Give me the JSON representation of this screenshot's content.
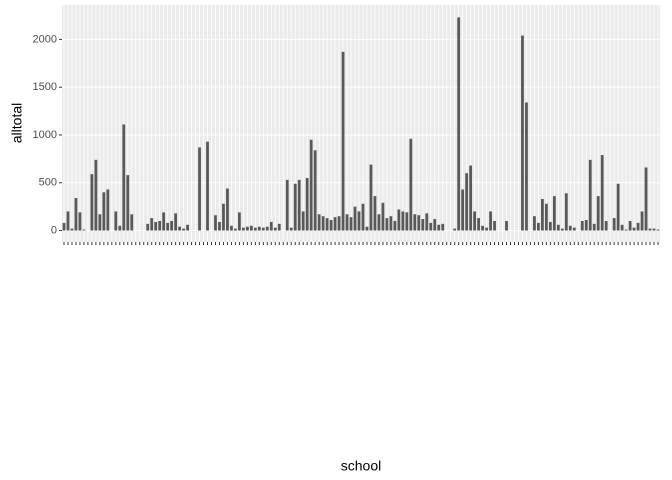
{
  "chart_data": {
    "type": "bar",
    "x_label": "school",
    "y_label": "alltotal",
    "categories": [
      null,
      null,
      null,
      null,
      null,
      null,
      null,
      null,
      null,
      null,
      null,
      null,
      null,
      null,
      null,
      null,
      null,
      null,
      null,
      null,
      null,
      null,
      null,
      null,
      null,
      null,
      null,
      null,
      null,
      null,
      null,
      null,
      null,
      null,
      null,
      null,
      null,
      null,
      null,
      null,
      null,
      null,
      null,
      null,
      null,
      null,
      null,
      null,
      null,
      null,
      null,
      null,
      null,
      null,
      null,
      null,
      null,
      null,
      null,
      null,
      null,
      null,
      null,
      null,
      null,
      null,
      null,
      null,
      null,
      null,
      null,
      null,
      null,
      null,
      null,
      null,
      null,
      null,
      null,
      null,
      null,
      null,
      null,
      null,
      null,
      null,
      null,
      null,
      null,
      null,
      null,
      null,
      null,
      null,
      null,
      null,
      null,
      null,
      null,
      null,
      null,
      null,
      null,
      null,
      null,
      null,
      null,
      null,
      null,
      null,
      null,
      null,
      null,
      null,
      null,
      null,
      null,
      null,
      null,
      null,
      null,
      null,
      null,
      null,
      null,
      null,
      null,
      null,
      null,
      null,
      null,
      null,
      null,
      null,
      null,
      null,
      null,
      null,
      null,
      null,
      null,
      null,
      null,
      null,
      null,
      null,
      null,
      null,
      null,
      null
    ],
    "values": [
      80,
      200,
      20,
      340,
      190,
      10,
      0,
      590,
      740,
      170,
      400,
      430,
      0,
      200,
      50,
      1110,
      580,
      170,
      0,
      0,
      0,
      70,
      130,
      90,
      100,
      190,
      80,
      100,
      180,
      40,
      20,
      60,
      0,
      0,
      870,
      0,
      930,
      0,
      160,
      90,
      280,
      440,
      50,
      20,
      190,
      30,
      40,
      50,
      30,
      40,
      30,
      40,
      90,
      30,
      70,
      0,
      530,
      30,
      490,
      530,
      200,
      550,
      950,
      840,
      170,
      150,
      130,
      110,
      140,
      150,
      1870,
      170,
      140,
      250,
      200,
      280,
      40,
      690,
      360,
      170,
      290,
      130,
      150,
      100,
      220,
      200,
      190,
      960,
      170,
      160,
      120,
      180,
      80,
      120,
      60,
      70,
      0,
      0,
      20,
      2230,
      430,
      600,
      680,
      200,
      130,
      50,
      30,
      200,
      100,
      0,
      0,
      100,
      0,
      0,
      0,
      2040,
      1340,
      0,
      150,
      80,
      330,
      280,
      90,
      360,
      60,
      20,
      390,
      50,
      30,
      0,
      100,
      110,
      740,
      70,
      360,
      790,
      100,
      0,
      130,
      490,
      60,
      10,
      100,
      30,
      80,
      200,
      660,
      20,
      20,
      10
    ],
    "color": "#595959",
    "ylim": [
      -120,
      2360
    ],
    "yticks": [
      0,
      500,
      1000,
      1500,
      2000
    ],
    "grid": true
  }
}
